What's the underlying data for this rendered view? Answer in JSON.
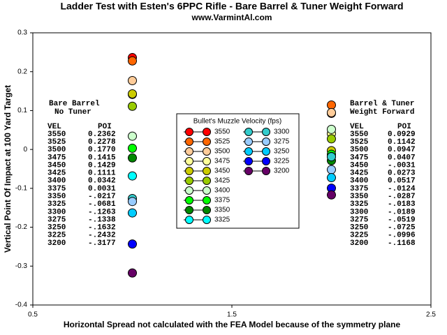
{
  "chart_data": {
    "type": "scatter",
    "title": "Ladder Test with Esten's 6PPC Rifle - Bare Barrel & Tuner Weight Forward",
    "subtitle": "www.VarmintAl.com",
    "x_label": "Horizontal Spread not calculated with the FEA Model because of the symmetry plane",
    "y_label": "Vertical Point Of Impact at 100 Yard Target",
    "x": [
      1,
      2
    ],
    "xlim": [
      0.5,
      2.5
    ],
    "xticks": [
      0.5,
      1.5,
      2.5
    ],
    "ylim": [
      -0.4,
      0.3
    ],
    "yticks": [
      -0.4,
      -0.3,
      -0.2,
      -0.1,
      0,
      0.1,
      0.2,
      0.3
    ],
    "legend_title": "Bullet's Muzzle Velocity (fps)",
    "group_labels": [
      [
        "Bare Barrel",
        "No Tuner"
      ],
      [
        "Barrel & Tuner",
        "Weight Forward"
      ]
    ],
    "table_headers": [
      "VEL",
      "POI"
    ],
    "series": [
      {
        "name": "3550",
        "color": "#ff0000",
        "values": [
          0.2362,
          0.0929
        ],
        "value_labels": [
          "0.2362",
          "0.0929"
        ]
      },
      {
        "name": "3525",
        "color": "#ff6600",
        "values": [
          0.2278,
          0.1142
        ],
        "value_labels": [
          "0.2278",
          "0.1142"
        ]
      },
      {
        "name": "3500",
        "color": "#ffcc99",
        "values": [
          0.177,
          0.0947
        ],
        "value_labels": [
          "0.1770",
          "0.0947"
        ]
      },
      {
        "name": "3475",
        "color": "#ffff99",
        "values": [
          0.1415,
          0.0407
        ],
        "value_labels": [
          "0.1415",
          "0.0407"
        ]
      },
      {
        "name": "3450",
        "color": "#cccc00",
        "values": [
          0.1429,
          -0.0031
        ],
        "value_labels": [
          "0.1429",
          "-.0031"
        ]
      },
      {
        "name": "3425",
        "color": "#99cc00",
        "values": [
          0.1111,
          0.0273
        ],
        "value_labels": [
          "0.1111",
          "0.0273"
        ]
      },
      {
        "name": "3400",
        "color": "#ccffcc",
        "values": [
          0.0342,
          0.0517
        ],
        "value_labels": [
          "0.0342",
          "0.0517"
        ]
      },
      {
        "name": "3375",
        "color": "#00ff00",
        "values": [
          0.0031,
          -0.0124
        ],
        "value_labels": [
          "0.0031",
          "-.0124"
        ]
      },
      {
        "name": "3350",
        "color": "#008800",
        "values": [
          -0.0217,
          -0.0287
        ],
        "value_labels": [
          "-.0217",
          "-.0287"
        ]
      },
      {
        "name": "3325",
        "color": "#00ffff",
        "values": [
          -0.0681,
          -0.0183
        ],
        "value_labels": [
          "-.0681",
          "-.0183"
        ]
      },
      {
        "name": "3300",
        "color": "#33cccc",
        "values": [
          -0.1263,
          -0.0189
        ],
        "value_labels": [
          "-.1263",
          "-.0189"
        ]
      },
      {
        "name": "3275",
        "color": "#99ccff",
        "values": [
          -0.1338,
          -0.0519
        ],
        "value_labels": [
          "-.1338",
          "-.0519"
        ]
      },
      {
        "name": "3250",
        "color": "#00ccff",
        "values": [
          -0.1632,
          -0.0725
        ],
        "value_labels": [
          "-.1632",
          "-.0725"
        ]
      },
      {
        "name": "3225",
        "color": "#0000ff",
        "values": [
          -0.2432,
          -0.0996
        ],
        "value_labels": [
          "-.2432",
          "-.0996"
        ]
      },
      {
        "name": "3200",
        "color": "#660066",
        "values": [
          -0.3177,
          -0.1168
        ],
        "value_labels": [
          "-.3177",
          "-.1168"
        ]
      }
    ]
  }
}
